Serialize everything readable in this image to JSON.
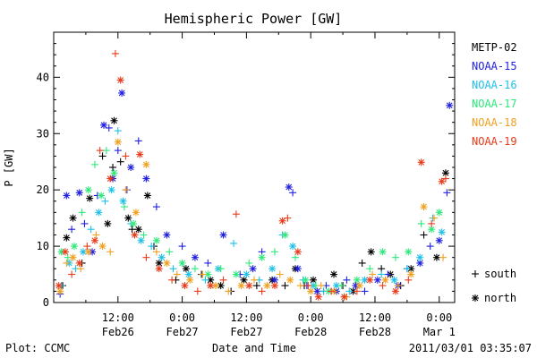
{
  "chart_data": {
    "type": "scatter",
    "title": "Hemispheric Power [GW]",
    "ylabel": "P [GW]",
    "xlabel": "Date and Time",
    "ylim": [
      0,
      48
    ],
    "xlim": [
      0,
      3.12
    ],
    "yticks": [
      0,
      10,
      20,
      30,
      40
    ],
    "x_units": "days since 2011-02-26 00:00",
    "xticks": [
      {
        "x": 0.5,
        "time": "12:00",
        "date": "Feb26"
      },
      {
        "x": 1.0,
        "time": "0:00",
        "date": "Feb27"
      },
      {
        "x": 1.5,
        "time": "12:00",
        "date": "Feb27"
      },
      {
        "x": 2.0,
        "time": "0:00",
        "date": "Feb28"
      },
      {
        "x": 2.5,
        "time": "12:00",
        "date": "Feb28"
      },
      {
        "x": 3.0,
        "time": "0:00",
        "date": "Mar 1"
      }
    ],
    "legend_placement": "right",
    "markers_legend": [
      {
        "symbol": "+",
        "label": "south"
      },
      {
        "symbol": "*",
        "label": "north"
      }
    ],
    "series": [
      {
        "name": "METP-02",
        "color": "#000000",
        "points": [
          [
            0.07,
            3,
            "+"
          ],
          [
            0.1,
            11.5,
            "*"
          ],
          [
            0.15,
            15,
            "*"
          ],
          [
            0.22,
            7,
            "+"
          ],
          [
            0.28,
            18.5,
            "*"
          ],
          [
            0.38,
            26,
            "+"
          ],
          [
            0.42,
            14,
            "*"
          ],
          [
            0.46,
            24,
            "+"
          ],
          [
            0.47,
            32.3,
            "*"
          ],
          [
            0.52,
            25,
            "+"
          ],
          [
            0.58,
            15,
            "*"
          ],
          [
            0.61,
            13,
            "+"
          ],
          [
            0.66,
            13,
            "*"
          ],
          [
            0.73,
            19,
            "*"
          ],
          [
            0.78,
            10,
            "+"
          ],
          [
            0.82,
            7,
            "*"
          ],
          [
            0.95,
            4,
            "+"
          ],
          [
            1.03,
            6,
            "*"
          ],
          [
            1.15,
            5,
            "+"
          ],
          [
            1.22,
            4,
            "*"
          ],
          [
            1.3,
            3,
            "*"
          ],
          [
            1.38,
            2,
            "+"
          ],
          [
            1.48,
            4,
            "*"
          ],
          [
            1.58,
            3,
            "+"
          ],
          [
            1.7,
            4,
            "*"
          ],
          [
            1.8,
            3,
            "+"
          ],
          [
            1.88,
            6,
            "*"
          ],
          [
            1.95,
            3,
            "+"
          ],
          [
            2.02,
            4,
            "*"
          ],
          [
            2.1,
            2,
            "+"
          ],
          [
            2.18,
            5,
            "*"
          ],
          [
            2.25,
            3,
            "+"
          ],
          [
            2.33,
            2,
            "*"
          ],
          [
            2.4,
            7,
            "+"
          ],
          [
            2.47,
            9,
            "*"
          ],
          [
            2.55,
            6,
            "+"
          ],
          [
            2.62,
            5,
            "*"
          ],
          [
            2.7,
            3,
            "+"
          ],
          [
            2.78,
            6,
            "*"
          ],
          [
            2.88,
            12,
            "+"
          ],
          [
            2.98,
            8,
            "*"
          ],
          [
            3.05,
            23,
            "*"
          ]
        ]
      },
      {
        "name": "NOAA-15",
        "color": "#1f1fe0",
        "points": [
          [
            0.05,
            1.5,
            "+"
          ],
          [
            0.1,
            19,
            "*"
          ],
          [
            0.14,
            13,
            "+"
          ],
          [
            0.2,
            19.5,
            "*"
          ],
          [
            0.24,
            14,
            "+"
          ],
          [
            0.3,
            9,
            "*"
          ],
          [
            0.34,
            19,
            "+"
          ],
          [
            0.39,
            31.5,
            "*"
          ],
          [
            0.43,
            31,
            "+"
          ],
          [
            0.46,
            22,
            "*"
          ],
          [
            0.5,
            27,
            "+"
          ],
          [
            0.53,
            37.2,
            "*"
          ],
          [
            0.57,
            20,
            "+"
          ],
          [
            0.6,
            24,
            "*"
          ],
          [
            0.66,
            28.7,
            "+"
          ],
          [
            0.72,
            22,
            "*"
          ],
          [
            0.8,
            17,
            "+"
          ],
          [
            0.88,
            12,
            "*"
          ],
          [
            1.0,
            10,
            "+"
          ],
          [
            1.1,
            8,
            "*"
          ],
          [
            1.2,
            7,
            "+"
          ],
          [
            1.32,
            12,
            "*"
          ],
          [
            1.45,
            5,
            "+"
          ],
          [
            1.55,
            6,
            "*"
          ],
          [
            1.62,
            9,
            "+"
          ],
          [
            1.72,
            4,
            "*"
          ],
          [
            1.83,
            20.5,
            "*"
          ],
          [
            1.86,
            19.5,
            "+"
          ],
          [
            1.9,
            6,
            "*"
          ],
          [
            1.97,
            3,
            "+"
          ],
          [
            2.05,
            2,
            "*"
          ],
          [
            2.12,
            3,
            "+"
          ],
          [
            2.2,
            2,
            "*"
          ],
          [
            2.28,
            4,
            "+"
          ],
          [
            2.35,
            3,
            "*"
          ],
          [
            2.42,
            2,
            "+"
          ],
          [
            2.52,
            4,
            "*"
          ],
          [
            2.6,
            5,
            "+"
          ],
          [
            2.68,
            3,
            "*"
          ],
          [
            2.75,
            6,
            "+"
          ],
          [
            2.85,
            7,
            "*"
          ],
          [
            2.93,
            10,
            "+"
          ],
          [
            3.0,
            11,
            "*"
          ],
          [
            3.06,
            19.5,
            "+"
          ],
          [
            3.08,
            35,
            "*"
          ]
        ]
      },
      {
        "name": "NOAA-16",
        "color": "#1fc0e8",
        "points": [
          [
            0.06,
            3,
            "+"
          ],
          [
            0.12,
            7,
            "*"
          ],
          [
            0.17,
            6,
            "+"
          ],
          [
            0.23,
            9,
            "*"
          ],
          [
            0.29,
            13,
            "+"
          ],
          [
            0.35,
            16,
            "*"
          ],
          [
            0.4,
            18,
            "+"
          ],
          [
            0.45,
            20,
            "*"
          ],
          [
            0.5,
            30.5,
            "+"
          ],
          [
            0.54,
            18,
            "*"
          ],
          [
            0.6,
            14,
            "+"
          ],
          [
            0.68,
            11,
            "*"
          ],
          [
            0.76,
            10,
            "+"
          ],
          [
            0.84,
            8,
            "*"
          ],
          [
            0.93,
            6,
            "+"
          ],
          [
            1.05,
            5,
            "*"
          ],
          [
            1.18,
            4,
            "+"
          ],
          [
            1.28,
            6,
            "*"
          ],
          [
            1.4,
            10.5,
            "+"
          ],
          [
            1.5,
            5,
            "*"
          ],
          [
            1.6,
            4,
            "+"
          ],
          [
            1.7,
            6,
            "*"
          ],
          [
            1.78,
            12,
            "+"
          ],
          [
            1.86,
            10,
            "*"
          ],
          [
            1.94,
            4,
            "+"
          ],
          [
            2.02,
            3,
            "*"
          ],
          [
            2.1,
            2,
            "+"
          ],
          [
            2.2,
            3,
            "*"
          ],
          [
            2.3,
            2,
            "+"
          ],
          [
            2.42,
            4,
            "*"
          ],
          [
            2.55,
            5,
            "+"
          ],
          [
            2.65,
            4,
            "*"
          ],
          [
            2.75,
            6,
            "+"
          ],
          [
            2.85,
            8,
            "*"
          ],
          [
            2.95,
            15,
            "+"
          ],
          [
            3.02,
            12.5,
            "*"
          ]
        ]
      },
      {
        "name": "NOAA-17",
        "color": "#2ee87a",
        "points": [
          [
            0.06,
            9,
            "*"
          ],
          [
            0.11,
            8,
            "+"
          ],
          [
            0.16,
            10,
            "*"
          ],
          [
            0.22,
            16,
            "+"
          ],
          [
            0.27,
            20,
            "*"
          ],
          [
            0.32,
            24.5,
            "+"
          ],
          [
            0.37,
            19,
            "*"
          ],
          [
            0.41,
            27,
            "+"
          ],
          [
            0.47,
            23,
            "*"
          ],
          [
            0.55,
            17,
            "+"
          ],
          [
            0.62,
            14,
            "*"
          ],
          [
            0.7,
            12,
            "+"
          ],
          [
            0.8,
            11,
            "*"
          ],
          [
            0.9,
            9,
            "+"
          ],
          [
            1.0,
            7,
            "*"
          ],
          [
            1.1,
            6,
            "+"
          ],
          [
            1.2,
            5,
            "*"
          ],
          [
            1.3,
            6,
            "+"
          ],
          [
            1.42,
            5,
            "*"
          ],
          [
            1.52,
            7,
            "+"
          ],
          [
            1.62,
            8,
            "*"
          ],
          [
            1.72,
            9,
            "+"
          ],
          [
            1.8,
            12,
            "*"
          ],
          [
            1.88,
            8,
            "+"
          ],
          [
            1.96,
            4,
            "*"
          ],
          [
            2.04,
            3,
            "+"
          ],
          [
            2.14,
            2,
            "*"
          ],
          [
            2.24,
            3,
            "+"
          ],
          [
            2.36,
            4,
            "*"
          ],
          [
            2.46,
            6,
            "+"
          ],
          [
            2.56,
            9,
            "*"
          ],
          [
            2.66,
            8,
            "+"
          ],
          [
            2.76,
            9,
            "*"
          ],
          [
            2.86,
            14,
            "+"
          ],
          [
            2.94,
            13,
            "*"
          ],
          [
            3.0,
            16,
            "*"
          ]
        ]
      },
      {
        "name": "NOAA-18",
        "color": "#f0a020",
        "points": [
          [
            0.05,
            2,
            "*"
          ],
          [
            0.1,
            7,
            "+"
          ],
          [
            0.15,
            8,
            "*"
          ],
          [
            0.21,
            6,
            "+"
          ],
          [
            0.27,
            9,
            "*"
          ],
          [
            0.33,
            12,
            "+"
          ],
          [
            0.38,
            10,
            "*"
          ],
          [
            0.44,
            9,
            "+"
          ],
          [
            0.5,
            28.5,
            "*"
          ],
          [
            0.56,
            20,
            "+"
          ],
          [
            0.64,
            16,
            "*"
          ],
          [
            0.72,
            24.5,
            "*"
          ],
          [
            0.8,
            9,
            "+"
          ],
          [
            0.88,
            7,
            "*"
          ],
          [
            0.96,
            5,
            "+"
          ],
          [
            1.06,
            4,
            "*"
          ],
          [
            1.16,
            5,
            "+"
          ],
          [
            1.26,
            3,
            "*"
          ],
          [
            1.36,
            2,
            "+"
          ],
          [
            1.46,
            3,
            "*"
          ],
          [
            1.56,
            4,
            "+"
          ],
          [
            1.66,
            3,
            "*"
          ],
          [
            1.76,
            5,
            "+"
          ],
          [
            1.84,
            4,
            "*"
          ],
          [
            1.92,
            3,
            "+"
          ],
          [
            2.0,
            2,
            "*"
          ],
          [
            2.08,
            3,
            "+"
          ],
          [
            2.18,
            2,
            "*"
          ],
          [
            2.28,
            1,
            "+"
          ],
          [
            2.38,
            3,
            "*"
          ],
          [
            2.48,
            5,
            "+"
          ],
          [
            2.58,
            4,
            "*"
          ],
          [
            2.68,
            3,
            "+"
          ],
          [
            2.78,
            5,
            "*"
          ],
          [
            2.88,
            17,
            "*"
          ],
          [
            2.96,
            15,
            "+"
          ],
          [
            3.03,
            8,
            "+"
          ]
        ]
      },
      {
        "name": "NOAA-19",
        "color": "#e83a1a",
        "points": [
          [
            0.04,
            3,
            "*"
          ],
          [
            0.09,
            9,
            "*"
          ],
          [
            0.14,
            5,
            "+"
          ],
          [
            0.2,
            7,
            "*"
          ],
          [
            0.26,
            10,
            "+"
          ],
          [
            0.32,
            11,
            "*"
          ],
          [
            0.36,
            27,
            "+"
          ],
          [
            0.44,
            22,
            "*"
          ],
          [
            0.48,
            44.2,
            "+"
          ],
          [
            0.52,
            39.5,
            "*"
          ],
          [
            0.56,
            26,
            "+"
          ],
          [
            0.63,
            12,
            "*"
          ],
          [
            0.67,
            26.3,
            "*"
          ],
          [
            0.72,
            8,
            "+"
          ],
          [
            0.82,
            6,
            "*"
          ],
          [
            0.92,
            4,
            "+"
          ],
          [
            1.02,
            3,
            "*"
          ],
          [
            1.12,
            2,
            "+"
          ],
          [
            1.22,
            3,
            "*"
          ],
          [
            1.32,
            4,
            "+"
          ],
          [
            1.42,
            15.7,
            "+"
          ],
          [
            1.52,
            3,
            "*"
          ],
          [
            1.62,
            2,
            "+"
          ],
          [
            1.72,
            3,
            "*"
          ],
          [
            1.78,
            14.5,
            "*"
          ],
          [
            1.82,
            15,
            "+"
          ],
          [
            1.9,
            9,
            "*"
          ],
          [
            1.98,
            3,
            "+"
          ],
          [
            2.06,
            1,
            "*"
          ],
          [
            2.16,
            2,
            "+"
          ],
          [
            2.26,
            1,
            "*"
          ],
          [
            2.36,
            2,
            "+"
          ],
          [
            2.46,
            4,
            "*"
          ],
          [
            2.56,
            3,
            "+"
          ],
          [
            2.66,
            2,
            "*"
          ],
          [
            2.76,
            4,
            "+"
          ],
          [
            2.86,
            24.9,
            "*"
          ],
          [
            2.94,
            14,
            "+"
          ],
          [
            3.02,
            21.5,
            "*"
          ],
          [
            3.05,
            22,
            "+"
          ]
        ]
      }
    ]
  },
  "footer": {
    "plot_credit": "Plot: CCMC",
    "timestamp": "2011/03/01  03:35:07"
  }
}
